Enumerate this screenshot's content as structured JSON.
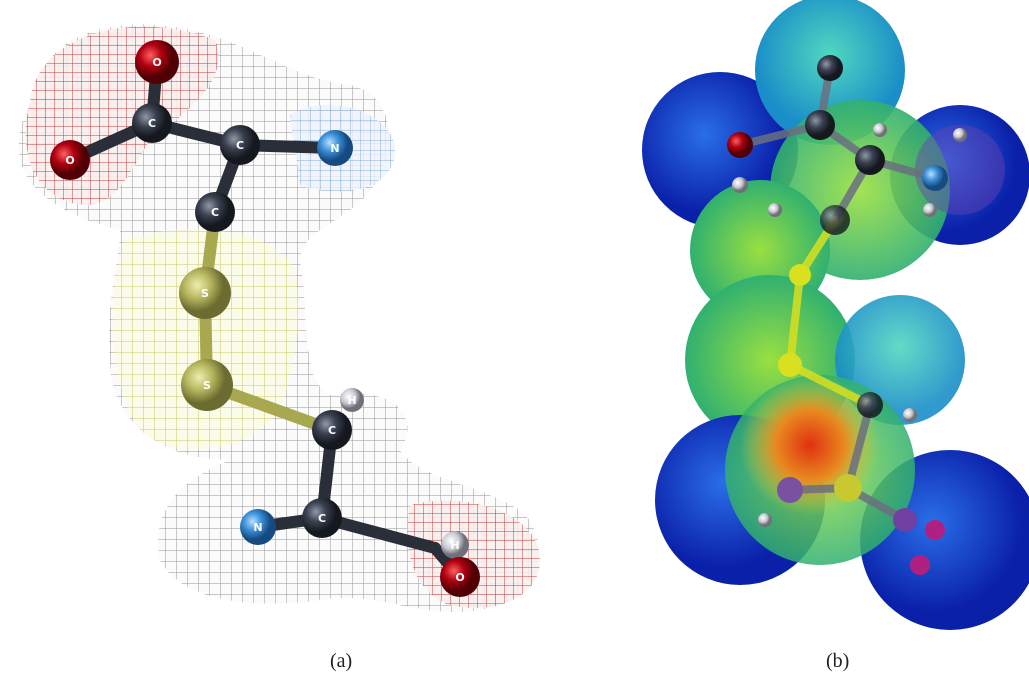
{
  "panels": [
    {
      "caption": "(a)",
      "atoms": [
        "O",
        "C",
        "C",
        "N",
        "O",
        "C",
        "S",
        "S",
        "C",
        "H",
        "N",
        "C",
        "H",
        "O"
      ]
    },
    {
      "caption": "(b)"
    }
  ]
}
